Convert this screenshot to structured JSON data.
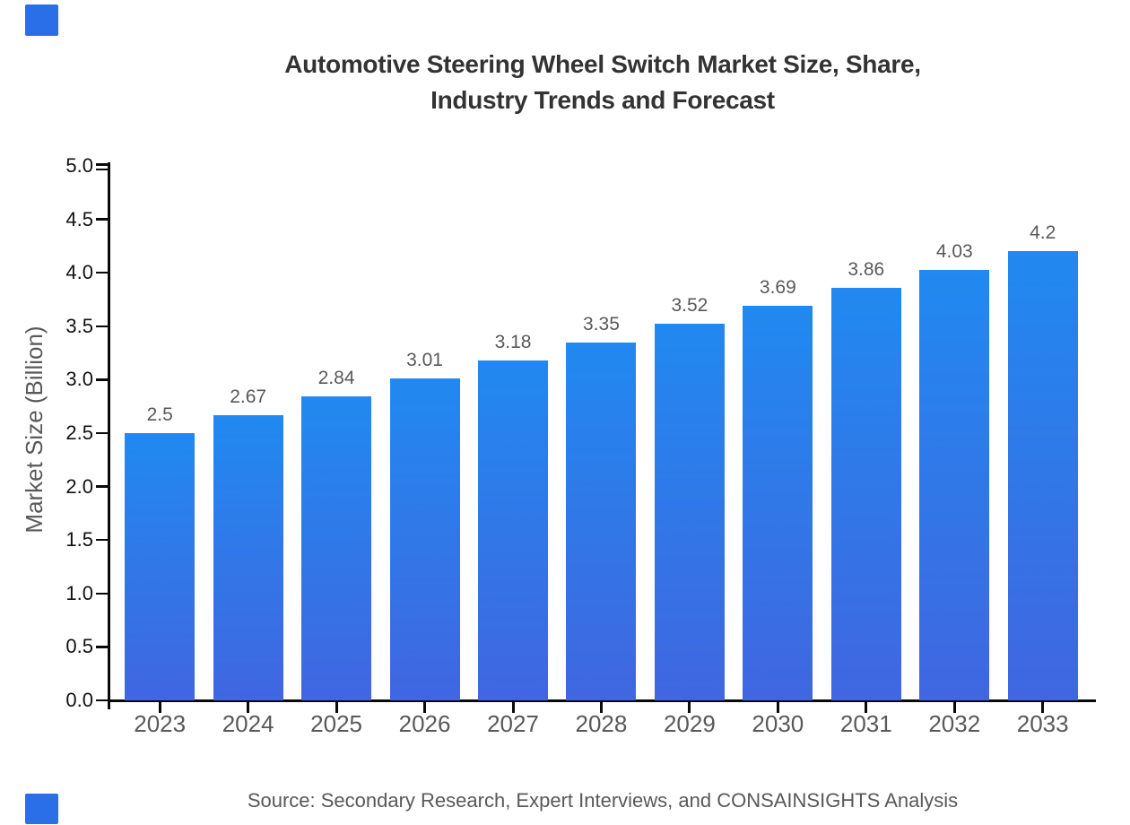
{
  "title": {
    "line1": "Automotive Steering Wheel Switch Market Size, Share,",
    "line2": "Industry Trends and Forecast"
  },
  "y_axis": {
    "label": "Market Size (Billion)",
    "tick_labels": [
      "0.0",
      "0.5",
      "1.0",
      "1.5",
      "2.0",
      "2.5",
      "3.0",
      "3.5",
      "4.0",
      "4.5",
      "5.0"
    ]
  },
  "source": "Source: Secondary Research, Expert Interviews, and CONSAINSIGHTS Analysis",
  "colors": {
    "bar_top": "#2189F1",
    "bar_bottom": "#4066E0",
    "axis": "#0a0a0a",
    "tick_text": "#111111",
    "label_gray": "#595959",
    "title_text": "#333333",
    "corner_square": "#2b6fe8"
  },
  "chart_data": {
    "type": "bar",
    "title": "Automotive Steering Wheel Switch Market Size, Share, Industry Trends and Forecast",
    "categories": [
      "2023",
      "2024",
      "2025",
      "2026",
      "2027",
      "2028",
      "2029",
      "2030",
      "2031",
      "2032",
      "2033"
    ],
    "values": [
      2.5,
      2.67,
      2.84,
      3.01,
      3.18,
      3.35,
      3.52,
      3.69,
      3.86,
      4.03,
      4.2
    ],
    "bar_labels": [
      "2.5",
      "2.67",
      "2.84",
      "3.01",
      "3.18",
      "3.35",
      "3.52",
      "3.69",
      "3.86",
      "4.03",
      "4.2"
    ],
    "xlabel": "",
    "ylabel": "Market Size (Billion)",
    "ylim": [
      0,
      5
    ],
    "ytick_step": 0.5,
    "grid": false,
    "legend": null,
    "bar_orientation": "vertical",
    "source_note": "Source: Secondary Research, Expert Interviews, and CONSAINSIGHTS Analysis"
  }
}
